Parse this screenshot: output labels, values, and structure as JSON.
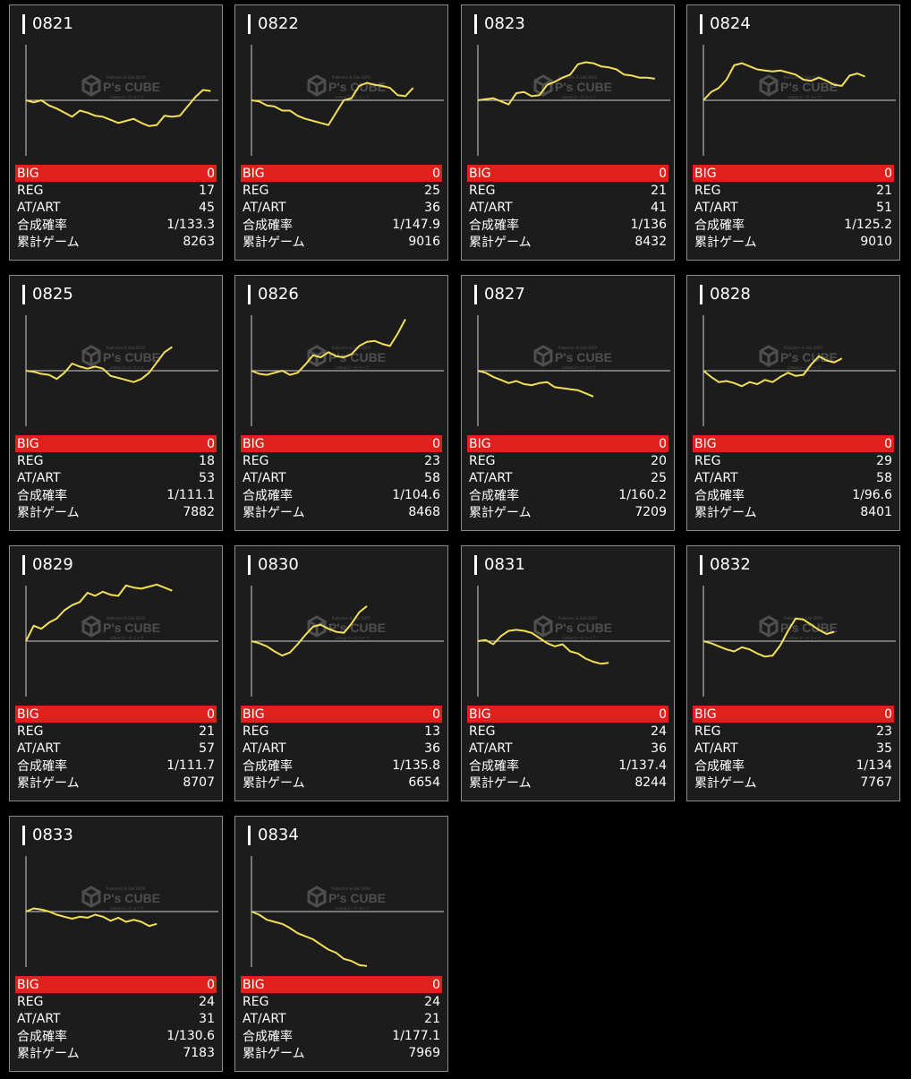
{
  "colors": {
    "background": "#000000",
    "card": "#1c1c1c",
    "card_border": "#8a8a8a",
    "big_row": "#e0201c",
    "line": "#f2e05a",
    "baseline": "#cfcfcf",
    "axis": "#cfcfcf"
  },
  "labels": {
    "big": "BIG",
    "reg": "REG",
    "at": "AT/ART",
    "prob": "合成確率",
    "games": "累計ゲーム"
  },
  "watermark": {
    "brand": "P's CUBE",
    "small_top": "Publisher & Slot DATA",
    "small_bottom": "video/ゴーガ ライブ"
  },
  "machines": [
    {
      "id": "0821",
      "big": "0",
      "reg": "17",
      "at": "45",
      "prob": "1/133.3",
      "games": "8263",
      "trend": [
        0,
        -2,
        0,
        -5,
        -8,
        -12,
        -16,
        -10,
        -12,
        -15,
        -16,
        -19,
        -22,
        -20,
        -18,
        -22,
        -25,
        -24,
        -15,
        -16,
        -15,
        -6,
        3,
        10,
        9
      ]
    },
    {
      "id": "0822",
      "big": "0",
      "reg": "25",
      "at": "36",
      "prob": "1/147.9",
      "games": "9016",
      "trend": [
        0,
        -1,
        -5,
        -6,
        -10,
        -10,
        -15,
        -18,
        -20,
        -22,
        -24,
        -12,
        0,
        2,
        14,
        17,
        15,
        14,
        12,
        5,
        4,
        12
      ]
    },
    {
      "id": "0823",
      "big": "0",
      "reg": "21",
      "at": "41",
      "prob": "1/136",
      "games": "8432",
      "trend": [
        0,
        1,
        2,
        -1,
        -4,
        7,
        8,
        4,
        5,
        15,
        18,
        22,
        25,
        35,
        37,
        36,
        33,
        32,
        30,
        25,
        24,
        22,
        22,
        21
      ]
    },
    {
      "id": "0824",
      "big": "0",
      "reg": "21",
      "at": "51",
      "prob": "1/125.2",
      "games": "9010",
      "trend": [
        0,
        8,
        12,
        20,
        34,
        36,
        33,
        30,
        29,
        28,
        29,
        27,
        25,
        20,
        19,
        22,
        19,
        15,
        14,
        24,
        26,
        23
      ]
    },
    {
      "id": "0825",
      "big": "0",
      "reg": "18",
      "at": "53",
      "prob": "1/111.1",
      "games": "7882",
      "trend": [
        0,
        -1,
        -3,
        -4,
        -8,
        -2,
        7,
        4,
        2,
        4,
        2,
        -5,
        -7,
        -9,
        -11,
        -8,
        -2,
        8,
        18,
        23
      ]
    },
    {
      "id": "0826",
      "big": "0",
      "reg": "23",
      "at": "58",
      "prob": "1/104.6",
      "games": "8468",
      "trend": [
        0,
        -3,
        -4,
        -2,
        0,
        -4,
        -2,
        6,
        15,
        13,
        18,
        14,
        13,
        16,
        24,
        28,
        29,
        26,
        24,
        36,
        50
      ]
    },
    {
      "id": "0827",
      "big": "0",
      "reg": "20",
      "at": "25",
      "prob": "1/160.2",
      "games": "7209",
      "trend": [
        0,
        -2,
        -6,
        -9,
        -12,
        -10,
        -13,
        -14,
        -12,
        -11,
        -16,
        -17,
        -18,
        -19,
        -22,
        -25
      ]
    },
    {
      "id": "0828",
      "big": "0",
      "reg": "29",
      "at": "58",
      "prob": "1/96.6",
      "games": "8401",
      "trend": [
        0,
        -6,
        -11,
        -10,
        -12,
        -15,
        -11,
        -13,
        -9,
        -11,
        -6,
        -2,
        -5,
        -4,
        6,
        14,
        10,
        8,
        12
      ]
    },
    {
      "id": "0829",
      "big": "0",
      "reg": "21",
      "at": "57",
      "prob": "1/111.7",
      "games": "8707",
      "trend": [
        0,
        15,
        12,
        18,
        22,
        30,
        35,
        38,
        47,
        44,
        48,
        45,
        44,
        54,
        52,
        51,
        53,
        55,
        52,
        49
      ]
    },
    {
      "id": "0830",
      "big": "0",
      "reg": "13",
      "at": "36",
      "prob": "1/135.8",
      "games": "6654",
      "trend": [
        0,
        -2,
        -5,
        -10,
        -14,
        -11,
        -3,
        6,
        14,
        16,
        12,
        9,
        8,
        17,
        28,
        34
      ]
    },
    {
      "id": "0831",
      "big": "0",
      "reg": "24",
      "at": "36",
      "prob": "1/137.4",
      "games": "8244",
      "trend": [
        0,
        1,
        -3,
        5,
        10,
        11,
        10,
        8,
        3,
        -2,
        -5,
        -3,
        -10,
        -12,
        -17,
        -20,
        -22,
        -21
      ]
    },
    {
      "id": "0832",
      "big": "0",
      "reg": "23",
      "at": "35",
      "prob": "1/134",
      "games": "7767",
      "trend": [
        0,
        -2,
        -5,
        -8,
        -10,
        -6,
        -8,
        -12,
        -15,
        -14,
        -4,
        10,
        22,
        21,
        16,
        11,
        7,
        9
      ]
    },
    {
      "id": "0833",
      "big": "0",
      "reg": "24",
      "at": "31",
      "prob": "1/130.6",
      "games": "7183",
      "trend": [
        0,
        3,
        2,
        0,
        -3,
        -5,
        -7,
        -5,
        -6,
        -3,
        -5,
        -9,
        -6,
        -10,
        -8,
        -10,
        -14,
        -12
      ]
    },
    {
      "id": "0834",
      "big": "0",
      "reg": "24",
      "at": "21",
      "prob": "1/177.1",
      "games": "7969",
      "trend": [
        0,
        -3,
        -8,
        -10,
        -12,
        -16,
        -21,
        -24,
        -27,
        -32,
        -37,
        -40,
        -46,
        -48,
        -52,
        -53
      ]
    }
  ]
}
